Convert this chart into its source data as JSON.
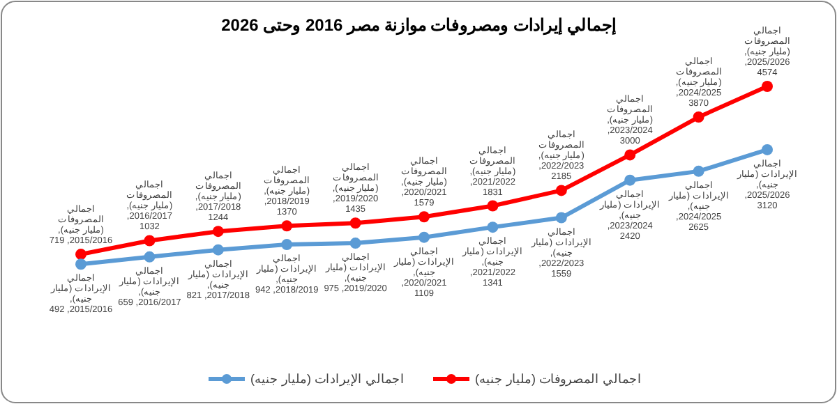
{
  "chart_data": {
    "type": "line",
    "title": "إجمالي إيرادات ومصروفات موازنة مصر 2016 وحتى 2026",
    "categories": [
      null,
      null,
      null,
      null,
      null,
      null,
      null,
      null,
      null,
      null,
      null
    ],
    "series": [
      {
        "name": "اجمالي المصروفات (مليار جنيه)",
        "color": "#ff0000",
        "values": [
          719,
          1032,
          1244,
          1370,
          1435,
          1579,
          1831,
          2185,
          3000,
          3870,
          4574
        ],
        "value_labels": [
          "اجمالي المصروفات (مليار جنيه),\n2015/2016, 719",
          "اجمالي المصروفات (مليار جنيه),\n2016/2017, 1032",
          "اجمالي المصروفات (مليار جنيه),\n2017/2018, 1244",
          "اجمالي المصروفات (مليار جنيه),\n2018/2019, 1370",
          "اجمالي المصروفات (مليار جنيه),\n2019/2020, 1435",
          "اجمالي المصروفات (مليار جنيه),\n2020/2021, 1579",
          "اجمالي المصروفات (مليار جنيه),\n2021/2022, 1831",
          "اجمالي المصروفات (مليار جنيه),\n2022/2023, 2185",
          "اجمالي المصروفات (مليار جنيه),\n2023/2024, 3000",
          "اجمالي المصروفات (مليار جنيه),\n2024/2025, 3870",
          "اجمالي المصروفات (مليار جنيه),\n2025/2026, 4574"
        ]
      },
      {
        "name": "اجمالي الإيرادات (مليار جنيه)",
        "color": "#5b9bd5",
        "values": [
          492,
          659,
          821,
          942,
          975,
          1109,
          1341,
          1559,
          2420,
          2625,
          3120
        ],
        "value_labels": [
          "اجمالي الإيرادات (مليار جنيه),\n2015/2016, 492",
          "اجمالي الإيرادات (مليار جنيه),\n2016/2017, 659",
          "اجمالي الإيرادات (مليار جنيه),\n2017/2018, 821",
          "اجمالي الإيرادات (مليار جنيه),\n2018/2019, 942",
          "اجمالي الإيرادات (مليار جنيه),\n2019/2020, 975",
          "اجمالي الإيرادات (مليار جنيه),\n2020/2021, 1109",
          "اجمالي الإيرادات (مليار جنيه),\n2021/2022, 1341",
          "اجمالي الإيرادات (مليار جنيه),\n2022/2023, 1559",
          "اجمالي الإيرادات (مليار جنيه),\n2023/2024, 2420",
          "اجمالي الإيرادات (مليار جنيه),\n2024/2025, 2625",
          "اجمالي الإيرادات (مليار جنيه),\n2025/2026, 3120"
        ]
      }
    ],
    "marker": "circle",
    "legend": "bottom"
  }
}
